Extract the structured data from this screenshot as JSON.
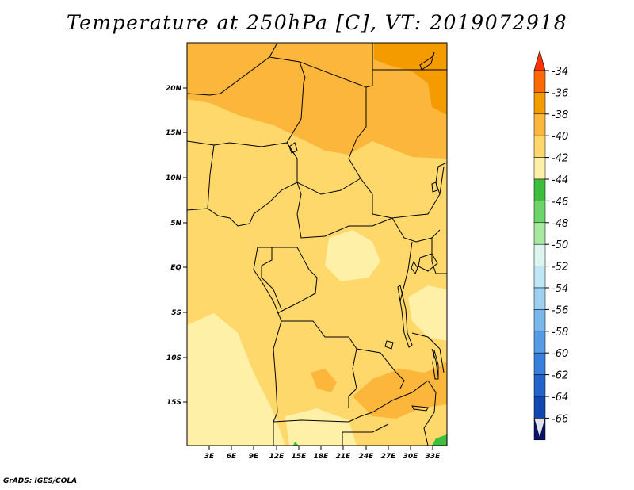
{
  "title": "Temperature at 250hPa [C], VT: 2019072918",
  "credit": "GrADS: IGES/COLA",
  "map": {
    "lat_labels": [
      "20N",
      "15N",
      "10N",
      "5N",
      "EQ",
      "5S",
      "10S",
      "15S"
    ],
    "lon_labels": [
      "3E",
      "6E",
      "9E",
      "12E",
      "15E",
      "18E",
      "21E",
      "24E",
      "27E",
      "30E",
      "33E"
    ],
    "land_color": "#fde68a",
    "boundary_color": "#000000"
  },
  "colorbar": {
    "labels": [
      "-34",
      "-36",
      "-38",
      "-40",
      "-42",
      "-44",
      "-46",
      "-48",
      "-50",
      "-52",
      "-54",
      "-56",
      "-58",
      "-60",
      "-62",
      "-64",
      "-66"
    ],
    "colors": [
      "#ff6a00",
      "#f49b00",
      "#fbb63b",
      "#fed86b",
      "#fff0a8",
      "#3dbe3d",
      "#6bd56b",
      "#a8e8a0",
      "#dcf6ef",
      "#bfe6f5",
      "#9fd0ef",
      "#7ab7ea",
      "#559ce6",
      "#3780dc",
      "#2364cc",
      "#1048b0",
      "#05136e"
    ],
    "top_arrow_color": "#ff3300",
    "bottom_arrow_color": "#e0e0f0"
  }
}
